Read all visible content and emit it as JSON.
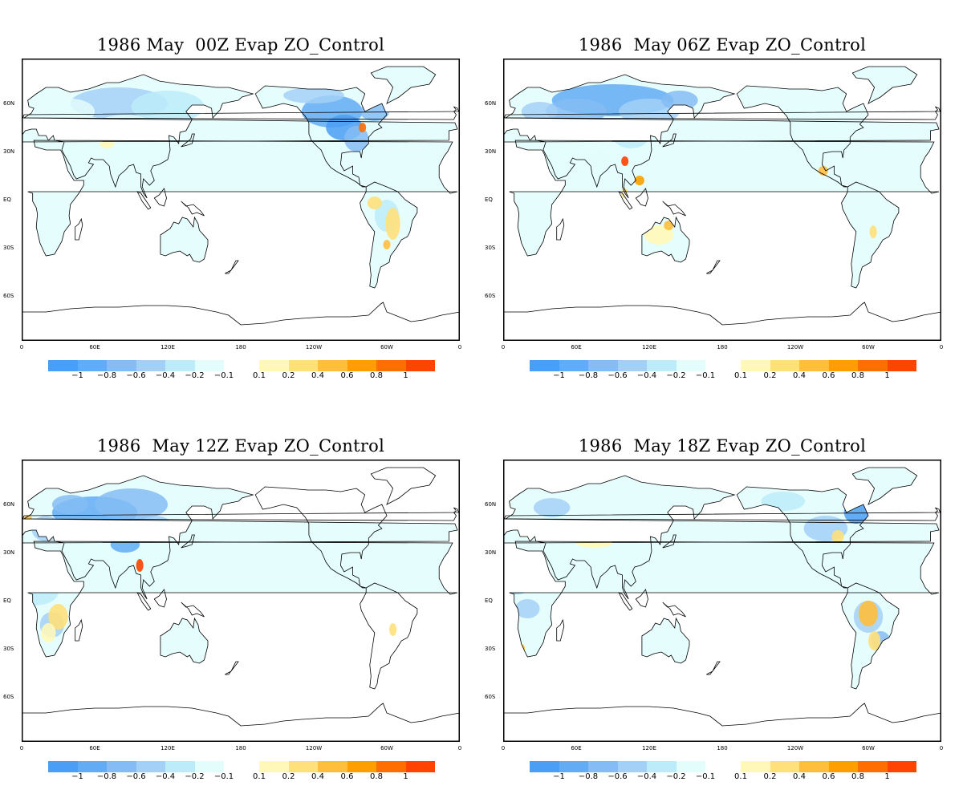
{
  "panels": [
    {
      "title": "1986 May  00Z Evap ZO_Control",
      "id": "00z"
    },
    {
      "title": "1986  May 06Z Evap ZO_Control",
      "id": "06z"
    },
    {
      "title": "1986  May 12Z Evap ZO_Control",
      "id": "12z"
    },
    {
      "title": "1986  May 18Z Evap ZO_Control",
      "id": "18z"
    }
  ],
  "x_ticks": [
    "0",
    "60E",
    "120E",
    "180",
    "120W",
    "60W",
    "0"
  ],
  "y_ticks": [
    "60N",
    "30N",
    "EQ",
    "30S",
    "60S"
  ],
  "colorbar": {
    "labels": [
      "-1",
      "-0.8",
      "-0.6",
      "-0.4",
      "-0.2",
      "-0.1",
      "0.1",
      "0.2",
      "0.4",
      "0.6",
      "0.8",
      "1"
    ],
    "negative_colors": [
      "#4b9ef5",
      "#62acf5",
      "#85bcf5",
      "#a3d0f7",
      "#bcecf9",
      "#e3fdfd"
    ],
    "positive_colors": [
      "#fff8b8",
      "#ffe07a",
      "#ffbf3c",
      "#ff9e00",
      "#ff6e00",
      "#ff4300"
    ]
  }
}
